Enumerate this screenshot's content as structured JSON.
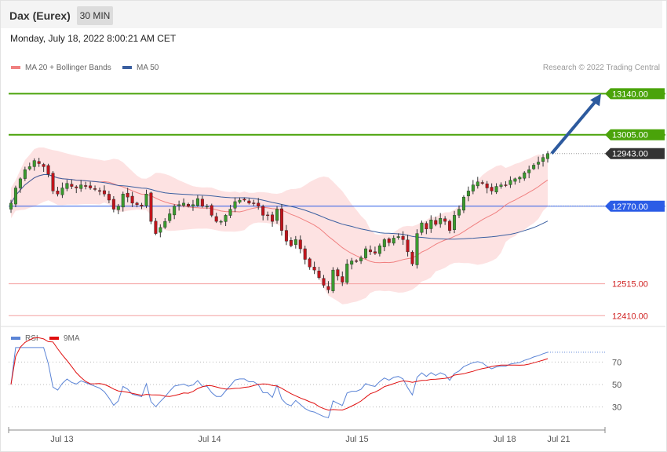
{
  "header": {
    "title": "Dax (Eurex)",
    "interval": "30 MIN",
    "datetime": "Monday, July 18, 2022 8:00:21 AM CET"
  },
  "legend": {
    "bollinger": "MA 20 + Bollinger Bands",
    "ma50": "MA 50",
    "copyright": "Research © 2022 Trading Central",
    "rsi": "RSI",
    "rsi_ma": "9MA"
  },
  "colors": {
    "candle_up": "#3a9a2e",
    "candle_down": "#c0141c",
    "bollinger_fill": "#fde2e2",
    "ma20": "#f08080",
    "ma50": "#3b5fa0",
    "resistance": "#4aa30a",
    "pivot": "#2b5ce6",
    "support": "#f4a0a0",
    "arrow": "#2d5a9e",
    "rsi": "#5b84d6",
    "rsi_ma": "#e01010"
  },
  "chart_data": [
    {
      "type": "candlestick",
      "x_labels": [
        "Jul 13",
        "Jul 14",
        "Jul 15",
        "Jul 18",
        "Jul 21"
      ],
      "ylim": [
        12390,
        13190
      ],
      "levels": [
        {
          "value": 13140.0,
          "label": "13140.00",
          "kind": "resistance"
        },
        {
          "value": 13005.0,
          "label": "13005.00",
          "kind": "resistance"
        },
        {
          "value": 12943.0,
          "label": "12943.00",
          "kind": "last"
        },
        {
          "value": 12770.0,
          "label": "12770.00",
          "kind": "pivot"
        },
        {
          "value": 12515.0,
          "label": "12515.00",
          "kind": "support"
        },
        {
          "value": 12410.0,
          "label": "12410.00",
          "kind": "support"
        }
      ],
      "closes": [
        12780,
        12830,
        12860,
        12890,
        12900,
        12920,
        12910,
        12900,
        12875,
        12820,
        12810,
        12830,
        12845,
        12835,
        12830,
        12840,
        12835,
        12830,
        12825,
        12820,
        12810,
        12790,
        12760,
        12770,
        12810,
        12800,
        12780,
        12775,
        12770,
        12810,
        12720,
        12680,
        12700,
        12720,
        12745,
        12770,
        12775,
        12780,
        12770,
        12775,
        12795,
        12770,
        12770,
        12740,
        12720,
        12720,
        12740,
        12760,
        12785,
        12790,
        12790,
        12780,
        12780,
        12770,
        12740,
        12740,
        12720,
        12760,
        12690,
        12655,
        12640,
        12660,
        12630,
        12595,
        12570,
        12560,
        12535,
        12510,
        12495,
        12560,
        12540,
        12520,
        12580,
        12590,
        12590,
        12600,
        12630,
        12620,
        12615,
        12640,
        12660,
        12650,
        12665,
        12670,
        12660,
        12620,
        12580,
        12680,
        12715,
        12695,
        12725,
        12710,
        12730,
        12720,
        12690,
        12740,
        12760,
        12800,
        12820,
        12840,
        12850,
        12845,
        12830,
        12820,
        12835,
        12840,
        12840,
        12855,
        12860,
        12865,
        12880,
        12890,
        12905,
        12915,
        12930,
        12943
      ],
      "series": [
        {
          "name": "MA 20 + Bollinger Bands"
        },
        {
          "name": "MA 50"
        }
      ]
    },
    {
      "type": "line",
      "y_ticks": [
        "70",
        "50",
        "30"
      ],
      "ylim": [
        15,
        85
      ],
      "series": [
        {
          "name": "RSI"
        },
        {
          "name": "9MA"
        }
      ]
    }
  ]
}
